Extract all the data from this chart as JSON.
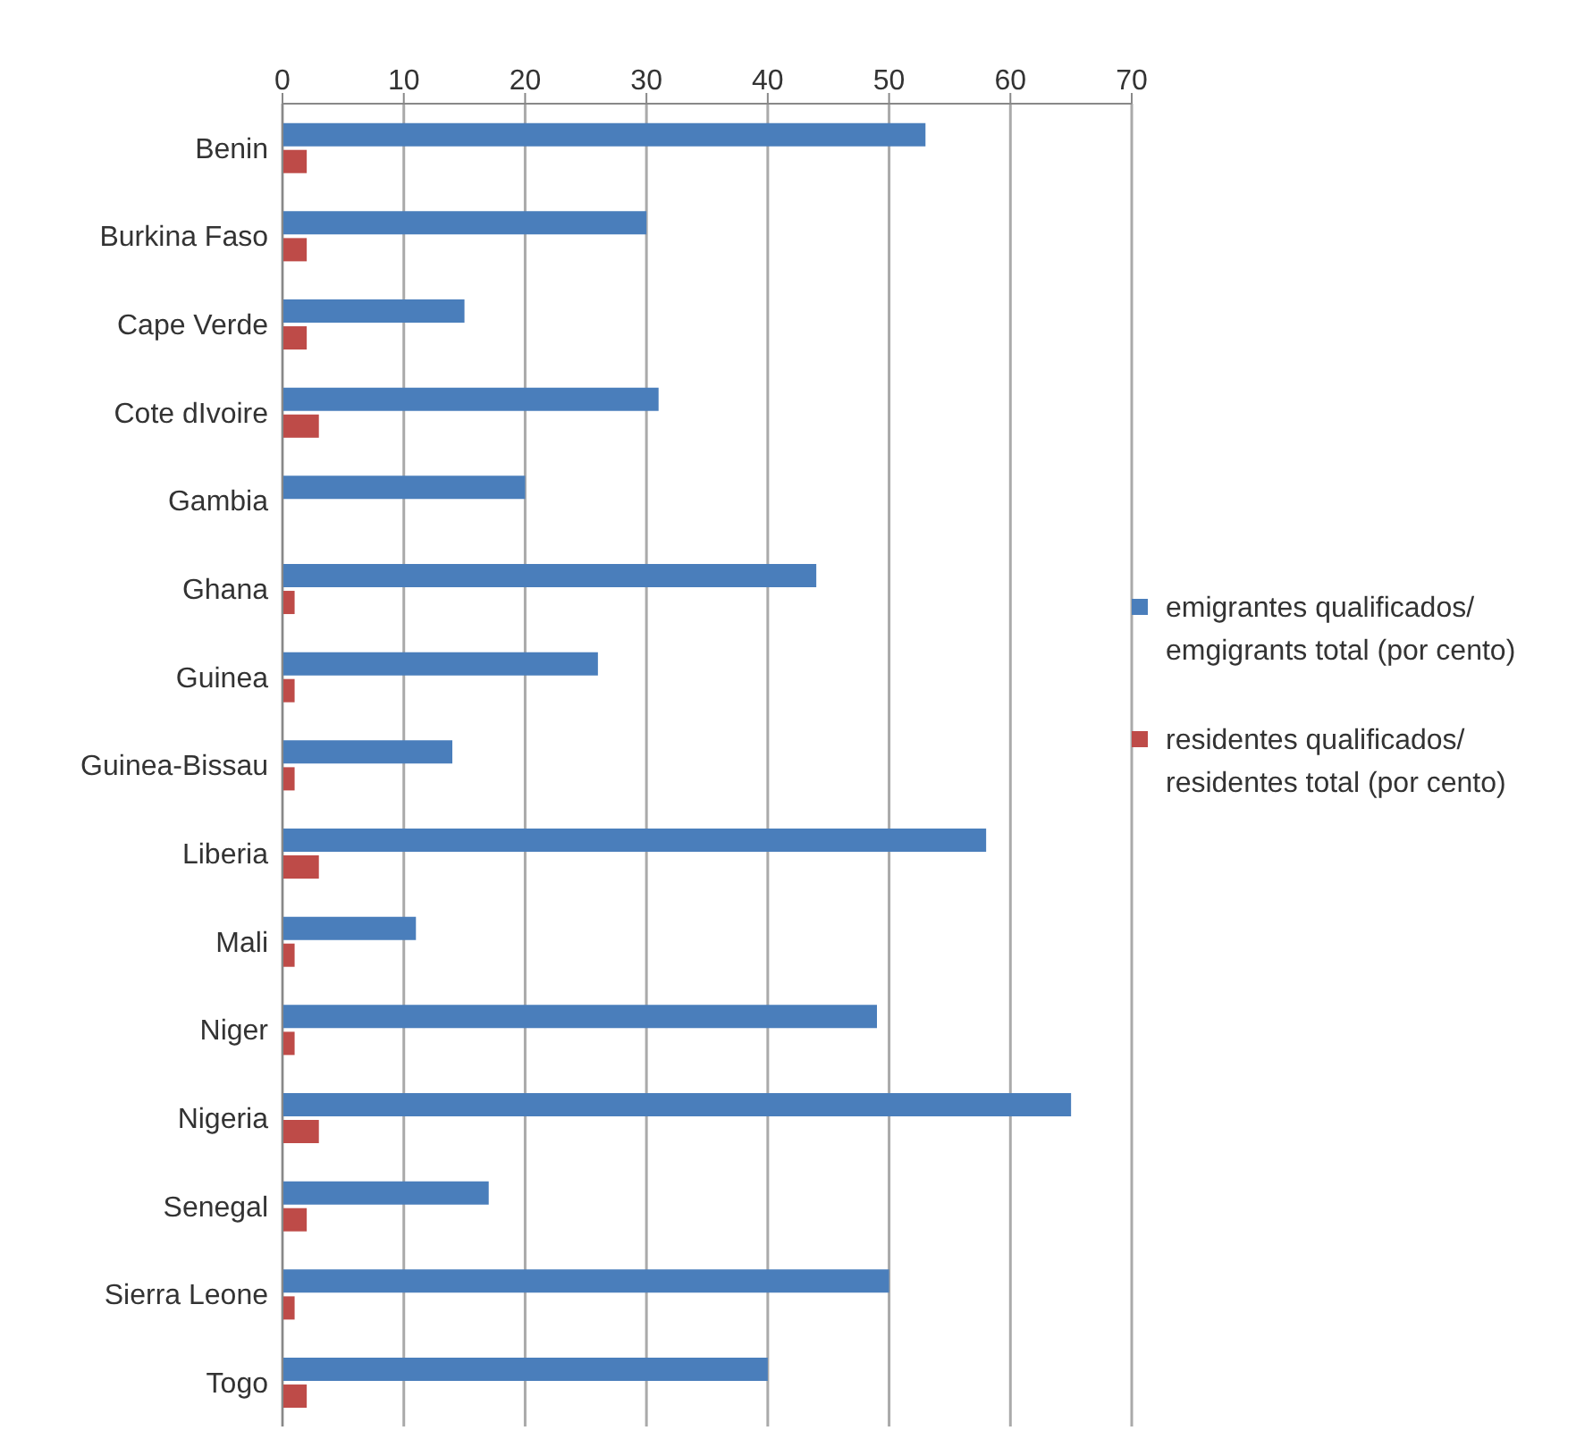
{
  "chart_data": {
    "type": "bar",
    "orientation": "horizontal",
    "categories": [
      "Benin",
      "Burkina Faso",
      "Cape Verde",
      "Cote dIvoire",
      "Gambia",
      "Ghana",
      "Guinea",
      "Guinea-Bissau",
      "Liberia",
      "Mali",
      "Niger",
      "Nigeria",
      "Senegal",
      "Sierra Leone",
      "Togo"
    ],
    "series": [
      {
        "name": "emigrantes qualificados/ emgigrants total (por cento)",
        "color": "#4a7ebb",
        "values": [
          53,
          30,
          15,
          31,
          20,
          44,
          26,
          14,
          58,
          11,
          49,
          65,
          17,
          50,
          40
        ]
      },
      {
        "name": "residentes qualificados/ residentes total (por cento)",
        "color": "#be4b48",
        "values": [
          2,
          2,
          2,
          3,
          0,
          1,
          1,
          1,
          3,
          1,
          1,
          3,
          2,
          1,
          2
        ]
      }
    ],
    "xlim": [
      0,
      70
    ],
    "xticks": [
      0,
      10,
      20,
      30,
      40,
      50,
      60,
      70
    ],
    "grid": "x",
    "legend": "right"
  }
}
